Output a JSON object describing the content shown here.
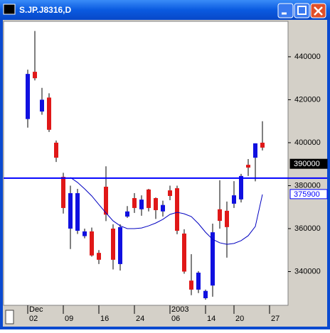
{
  "chart_data": {
    "type": "candlestick",
    "title": "S.JP.J8316,D",
    "open": [
      411000,
      433000,
      414500,
      421000,
      400000,
      384100,
      360000,
      359000,
      356500,
      358700,
      348700,
      379500,
      360000,
      343500,
      365600,
      374200,
      369000,
      378200,
      374200,
      368000,
      377800,
      378800,
      357700,
      335800,
      331600,
      327600,
      333500,
      369000,
      368300,
      371600,
      373600,
      389700,
      393000,
      400000
    ],
    "high": [
      434000,
      452000,
      425500,
      423000,
      401000,
      386000,
      380000,
      378500,
      360000,
      360500,
      350000,
      389000,
      362000,
      362000,
      370500,
      376500,
      375500,
      378500,
      374500,
      373000,
      380000,
      380000,
      359700,
      348100,
      340200,
      331600,
      362300,
      382500,
      372600,
      382100,
      385500,
      392400,
      399700,
      410000
    ],
    "low": [
      407000,
      429000,
      413000,
      405000,
      391000,
      367000,
      350500,
      357500,
      355500,
      347000,
      343500,
      363500,
      341000,
      340500,
      365000,
      367300,
      366000,
      368000,
      364500,
      365600,
      373200,
      357400,
      339000,
      329000,
      330000,
      326900,
      328300,
      360000,
      346500,
      369600,
      372200,
      384500,
      382000,
      396400
    ],
    "close": [
      432000,
      430000,
      420000,
      406000,
      393000,
      369600,
      376500,
      376500,
      358700,
      347500,
      345500,
      366500,
      345500,
      360700,
      368000,
      369600,
      373500,
      369600,
      368600,
      371000,
      375200,
      359000,
      340000,
      331600,
      339500,
      331000,
      358300,
      363600,
      360700,
      375500,
      384500,
      388400,
      399700,
      397700
    ],
    "up_color": "#1010e0",
    "down_color": "#e01818",
    "moving_average": {
      "color": "#0000c0",
      "values": [
        null,
        null,
        null,
        null,
        null,
        null,
        383800,
        381500,
        378500,
        375200,
        371200,
        367300,
        363600,
        361300,
        360000,
        360000,
        360300,
        361300,
        362600,
        364300,
        366600,
        367600,
        366900,
        365600,
        362300,
        358300,
        355000,
        353400,
        352700,
        353100,
        354400,
        356700,
        361000,
        375900
      ]
    },
    "hline": {
      "value": 383500,
      "color": "#0000ff"
    },
    "price_labels": [
      {
        "value": 390000,
        "label": "390000"
      },
      {
        "value": 375900,
        "label": "375900"
      }
    ],
    "xlim": [
      -3.4,
      36.6
    ],
    "xticks": [
      {
        "value": 0,
        "label": "02"
      },
      {
        "value": 5,
        "label": "09"
      },
      {
        "value": 10,
        "label": "16"
      },
      {
        "value": 15,
        "label": "24"
      },
      {
        "value": 20,
        "label": "06"
      },
      {
        "value": 25,
        "label": "14"
      },
      {
        "value": 29,
        "label": "20"
      },
      {
        "value": 34,
        "label": "27"
      }
    ],
    "periods": [
      {
        "value": 0,
        "label": "Dec"
      },
      {
        "value": 20,
        "label": "2003"
      }
    ],
    "ylim": [
      324300,
      456500
    ],
    "yticks": [
      340000,
      360000,
      380000,
      400000,
      420000,
      440000
    ]
  }
}
